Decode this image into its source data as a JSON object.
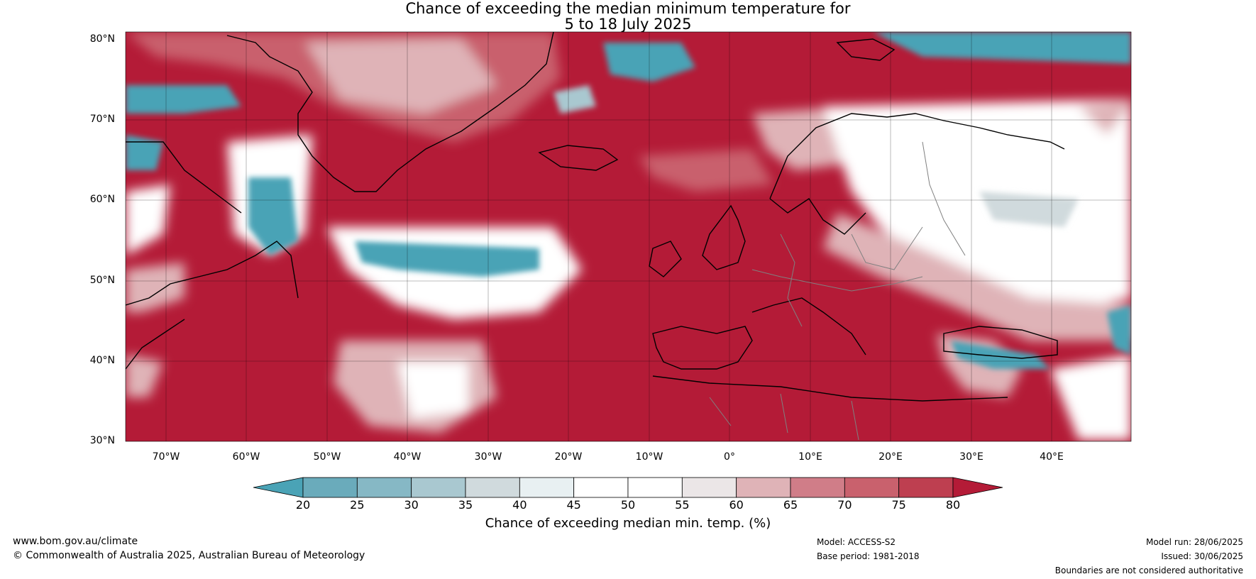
{
  "title": {
    "line1": "Chance of exceeding the median minimum temperature for",
    "line2": "5 to 18 July 2025"
  },
  "map": {
    "lat_labels": [
      "80°N",
      "70°N",
      "60°N",
      "50°N",
      "40°N",
      "30°N"
    ],
    "lon_labels": [
      "70°W",
      "60°W",
      "50°W",
      "40°W",
      "30°W",
      "20°W",
      "10°W",
      "0°",
      "10°E",
      "20°E",
      "30°E",
      "40°E"
    ],
    "colors": {
      "strong_warm": "#b41b37",
      "warm_mid": "#c9616d",
      "warm_light": "#dfb3b7",
      "neutral": "#ffffff",
      "cool_light": "#a9c8d0",
      "strong_cool": "#4aa3b6",
      "coast": "#000000",
      "border": "#808080"
    }
  },
  "colorbar": {
    "ticks": [
      "20",
      "25",
      "30",
      "35",
      "40",
      "45",
      "50",
      "55",
      "60",
      "65",
      "70",
      "75",
      "80"
    ],
    "colors": [
      "#4aa3b6",
      "#6aabbb",
      "#86b8c5",
      "#a9c8d0",
      "#d0dadd",
      "#e8f0f2",
      "#ffffff",
      "#ffffff",
      "#ebe6e7",
      "#dfb3b7",
      "#d07d88",
      "#c9616d",
      "#be3f50",
      "#b41b37"
    ],
    "label": "Chance of exceeding median min. temp. (%)"
  },
  "footer": {
    "website": "www.bom.gov.au/climate",
    "copyright": "© Commonwealth of Australia 2025, Australian Bureau of Meteorology",
    "model": "Model: ACCESS-S2",
    "base_period": "Base period: 1981-2018",
    "model_run": "Model run: 28/06/2025",
    "issued": "Issued: 30/06/2025",
    "disclaimer": "Boundaries are not considered authoritative"
  }
}
